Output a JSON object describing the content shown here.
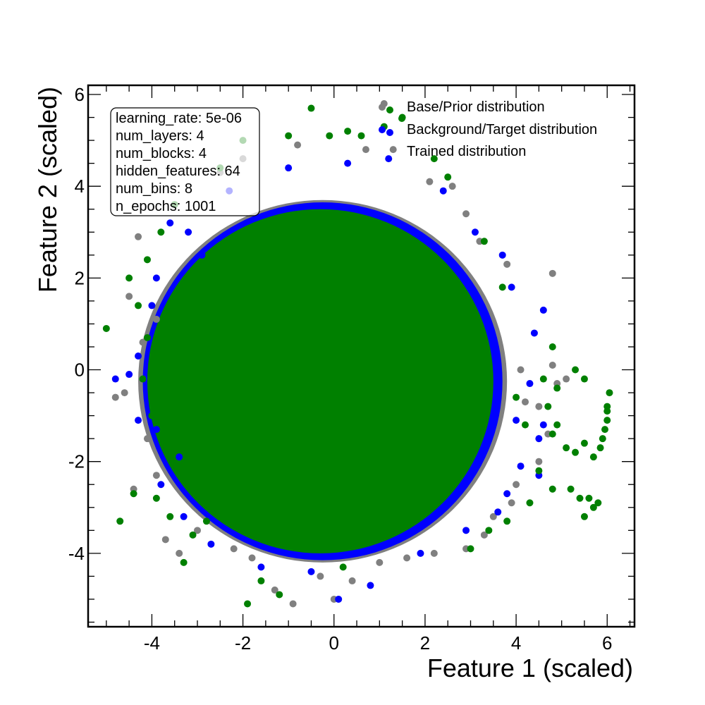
{
  "chart_data": {
    "type": "scatter",
    "xlabel": "Feature 1 (scaled)",
    "ylabel": "Feature 2 (scaled)",
    "xlim": [
      -5.4,
      6.6
    ],
    "ylim": [
      -5.6,
      6.2
    ],
    "x_ticks": [
      -4,
      -2,
      0,
      2,
      4,
      6
    ],
    "y_ticks": [
      -4,
      -2,
      0,
      2,
      4,
      6
    ],
    "x_tick_labels": [
      "-4",
      "-2",
      "0",
      "2",
      "4",
      "6"
    ],
    "y_tick_labels": [
      "-4",
      "-2",
      "0",
      "2",
      "4",
      "6"
    ],
    "grid": false,
    "legend_position": "top-right",
    "series": [
      {
        "name": "Base/Prior distribution",
        "color": "#808080",
        "points": [
          [
            -4.8,
            -0.6
          ],
          [
            -4.5,
            1.6
          ],
          [
            -4.4,
            -2.6
          ],
          [
            -4.3,
            2.9
          ],
          [
            -4.6,
            -0.5
          ],
          [
            -4.1,
            -1.5
          ],
          [
            -3.9,
            1.1
          ],
          [
            -3.7,
            -3.7
          ],
          [
            -3.5,
            3.6
          ],
          [
            -3.4,
            -4.0
          ],
          [
            -3.0,
            -3.5
          ],
          [
            -2.5,
            4.3
          ],
          [
            -2.2,
            -3.9
          ],
          [
            -2.0,
            4.6
          ],
          [
            -1.8,
            -4.1
          ],
          [
            -1.3,
            -4.8
          ],
          [
            -0.9,
            -5.1
          ],
          [
            -0.8,
            4.9
          ],
          [
            -0.3,
            -4.5
          ],
          [
            0.0,
            -5.0
          ],
          [
            0.4,
            -4.6
          ],
          [
            0.7,
            4.8
          ],
          [
            1.0,
            -4.2
          ],
          [
            1.3,
            4.8
          ],
          [
            1.1,
            5.8
          ],
          [
            1.6,
            -4.1
          ],
          [
            2.1,
            4.1
          ],
          [
            2.6,
            4.0
          ],
          [
            2.9,
            3.4
          ],
          [
            3.2,
            2.8
          ],
          [
            3.8,
            2.3
          ],
          [
            4.1,
            0.0
          ],
          [
            4.5,
            -0.8
          ],
          [
            4.8,
            0.1
          ],
          [
            4.9,
            -0.3
          ],
          [
            4.7,
            -1.4
          ],
          [
            4.5,
            -2.0
          ],
          [
            4.0,
            -2.5
          ],
          [
            3.5,
            -3.2
          ],
          [
            3.3,
            -3.6
          ],
          [
            2.9,
            -3.9
          ],
          [
            2.2,
            -4.0
          ],
          [
            4.8,
            2.1
          ],
          [
            5.1,
            -0.2
          ],
          [
            4.2,
            -0.7
          ],
          [
            3.9,
            -2.9
          ],
          [
            -4.2,
            0.6
          ],
          [
            -3.9,
            -2.3
          ]
        ]
      },
      {
        "name": "Background/Target distribution",
        "color": "#0000ff",
        "points": [
          [
            -4.8,
            -0.2
          ],
          [
            -4.3,
            -1.1
          ],
          [
            -4.0,
            1.4
          ],
          [
            -3.9,
            -1.3
          ],
          [
            -3.8,
            -2.5
          ],
          [
            -3.9,
            2.0
          ],
          [
            -3.6,
            3.2
          ],
          [
            -3.3,
            -3.2
          ],
          [
            -3.2,
            3.0
          ],
          [
            -2.7,
            -3.8
          ],
          [
            -2.3,
            3.9
          ],
          [
            -1.6,
            -4.3
          ],
          [
            -1.0,
            4.4
          ],
          [
            -0.5,
            -4.4
          ],
          [
            0.1,
            -5.0
          ],
          [
            0.3,
            4.5
          ],
          [
            0.8,
            -4.7
          ],
          [
            1.2,
            4.6
          ],
          [
            1.9,
            -4.0
          ],
          [
            2.4,
            3.9
          ],
          [
            2.9,
            -3.5
          ],
          [
            3.1,
            3.0
          ],
          [
            3.6,
            -3.1
          ],
          [
            3.7,
            2.5
          ],
          [
            3.9,
            1.8
          ],
          [
            4.0,
            -1.1
          ],
          [
            4.3,
            -0.3
          ],
          [
            4.4,
            0.8
          ],
          [
            4.6,
            1.3
          ],
          [
            4.5,
            -1.5
          ],
          [
            4.1,
            -2.1
          ],
          [
            4.5,
            -2.3
          ],
          [
            4.6,
            -1.2
          ],
          [
            3.8,
            -2.7
          ],
          [
            -4.3,
            0.3
          ],
          [
            -4.5,
            -0.1
          ],
          [
            -3.4,
            -1.9
          ],
          [
            -2.9,
            2.5
          ]
        ]
      },
      {
        "name": "Trained distribution",
        "color": "#008000",
        "points": [
          [
            -5.0,
            0.9
          ],
          [
            -4.7,
            -3.3
          ],
          [
            -4.5,
            2.0
          ],
          [
            -4.4,
            -2.7
          ],
          [
            -4.3,
            1.4
          ],
          [
            -4.1,
            2.4
          ],
          [
            -4.0,
            -1.0
          ],
          [
            -3.9,
            -2.8
          ],
          [
            -3.8,
            3.0
          ],
          [
            -3.6,
            -3.2
          ],
          [
            -3.5,
            3.6
          ],
          [
            -3.3,
            -4.2
          ],
          [
            -3.1,
            -3.6
          ],
          [
            -2.8,
            -3.3
          ],
          [
            -2.5,
            4.4
          ],
          [
            -2.0,
            5.0
          ],
          [
            -1.9,
            -5.1
          ],
          [
            -1.6,
            -4.6
          ],
          [
            -1.2,
            -4.9
          ],
          [
            -1.0,
            5.1
          ],
          [
            -0.5,
            5.7
          ],
          [
            -0.1,
            5.1
          ],
          [
            0.3,
            5.2
          ],
          [
            0.2,
            -4.3
          ],
          [
            0.6,
            5.1
          ],
          [
            1.1,
            5.3
          ],
          [
            1.5,
            5.5
          ],
          [
            2.2,
            4.6
          ],
          [
            2.5,
            4.2
          ],
          [
            3.3,
            2.8
          ],
          [
            3.7,
            1.8
          ],
          [
            4.0,
            -0.6
          ],
          [
            4.2,
            -1.2
          ],
          [
            4.6,
            -0.2
          ],
          [
            4.7,
            -0.8
          ],
          [
            4.8,
            0.5
          ],
          [
            4.9,
            -0.4
          ],
          [
            5.3,
            0.0
          ],
          [
            5.5,
            -0.2
          ],
          [
            4.8,
            -1.4
          ],
          [
            4.5,
            -2.2
          ],
          [
            4.8,
            -2.6
          ],
          [
            4.3,
            -2.9
          ],
          [
            3.8,
            -3.3
          ],
          [
            3.4,
            -3.5
          ],
          [
            3.0,
            -3.9
          ],
          [
            4.9,
            -1.2
          ],
          [
            5.1,
            -1.7
          ],
          [
            5.3,
            -1.8
          ],
          [
            5.5,
            -1.6
          ],
          [
            5.2,
            -2.6
          ],
          [
            5.7,
            -1.9
          ],
          [
            5.6,
            -2.8
          ],
          [
            5.7,
            -3.0
          ],
          [
            5.8,
            -2.9
          ],
          [
            5.5,
            -3.2
          ],
          [
            6.0,
            -1.1
          ],
          [
            6.0,
            -0.8
          ],
          [
            6.05,
            -0.5
          ],
          [
            5.95,
            -1.3
          ],
          [
            5.9,
            -1.5
          ],
          [
            5.85,
            -1.7
          ],
          [
            6.0,
            -0.9
          ],
          [
            5.4,
            -2.8
          ],
          [
            -4.2,
            -0.2
          ],
          [
            -4.1,
            0.7
          ],
          [
            -3.6,
            -1.6
          ]
        ]
      }
    ],
    "core_regions": [
      {
        "series": "Base/Prior distribution",
        "color": "#808080",
        "cx": -0.25,
        "cy": -0.25,
        "rx": 4.05,
        "ry": 3.95
      },
      {
        "series": "Background/Target distribution",
        "color": "#0000ff",
        "cx": -0.25,
        "cy": -0.25,
        "rx": 3.95,
        "ry": 3.9
      },
      {
        "series": "Trained distribution",
        "color": "#008000",
        "cx": -0.3,
        "cy": -0.25,
        "rx": 3.8,
        "ry": 3.75
      }
    ]
  },
  "info_box": {
    "lines": [
      "learning_rate: 5e-06",
      "num_layers: 4",
      "num_blocks: 4",
      "hidden_features: 64",
      "num_bins: 8",
      "n_epochs: 1001"
    ]
  }
}
